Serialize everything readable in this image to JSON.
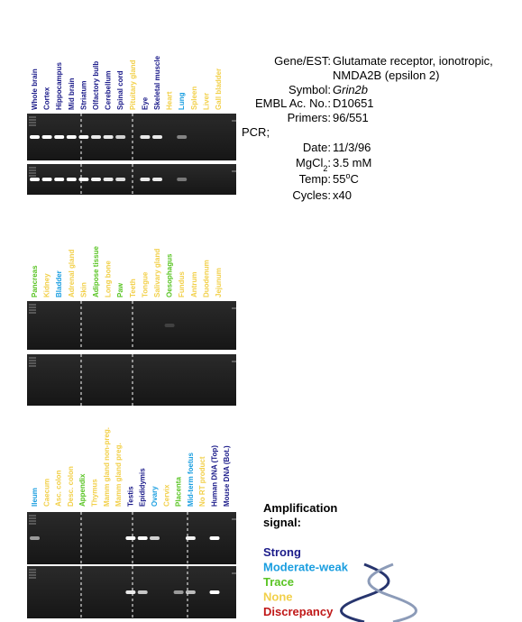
{
  "panels": [
    {
      "lanes": [
        {
          "label": "Whole brain",
          "color": "#1c1c8a"
        },
        {
          "label": "Cortex",
          "color": "#1c1c8a"
        },
        {
          "label": "Hippocampus",
          "color": "#1c1c8a"
        },
        {
          "label": "Mid brain",
          "color": "#1c1c8a"
        },
        {
          "label": "Striatum",
          "color": "#1c1c8a"
        },
        {
          "label": "Olfactory bulb",
          "color": "#1c1c8a"
        },
        {
          "label": "Cerebellum",
          "color": "#1c1c8a"
        },
        {
          "label": "Spinal cord",
          "color": "#1c1c8a"
        },
        {
          "label": "Pituitary gland",
          "color": "#f2d04a"
        },
        {
          "label": "Eye",
          "color": "#1c1c8a"
        },
        {
          "label": "Skeletal muscle",
          "color": "#1c1c8a"
        },
        {
          "label": "Heart",
          "color": "#f2d04a"
        },
        {
          "label": "Lung",
          "color": "#1a9ee0"
        },
        {
          "label": "Spleen",
          "color": "#f2d04a"
        },
        {
          "label": "Liver",
          "color": "#f2d04a"
        },
        {
          "label": "Gall bladder",
          "color": "#f2d04a"
        }
      ]
    },
    {
      "lanes": [
        {
          "label": "Pancreas",
          "color": "#5ac424"
        },
        {
          "label": "Kidney",
          "color": "#f2d04a"
        },
        {
          "label": "Bladder",
          "color": "#1a9ee0"
        },
        {
          "label": "Adrenal gland",
          "color": "#f2d04a"
        },
        {
          "label": "Skin",
          "color": "#f2d04a"
        },
        {
          "label": "Adipose tissue",
          "color": "#5ac424"
        },
        {
          "label": "Long bone",
          "color": "#f2d04a"
        },
        {
          "label": "Paw",
          "color": "#5ac424"
        },
        {
          "label": "Teeth",
          "color": "#f2d04a"
        },
        {
          "label": "Tongue",
          "color": "#f2d04a"
        },
        {
          "label": "Salivary gland",
          "color": "#f2d04a"
        },
        {
          "label": "Oesophagus",
          "color": "#5ac424"
        },
        {
          "label": "Fundus",
          "color": "#f2d04a"
        },
        {
          "label": "Antrum",
          "color": "#f2d04a"
        },
        {
          "label": "Duodenum",
          "color": "#f2d04a"
        },
        {
          "label": "Jejunum",
          "color": "#f2d04a"
        }
      ]
    },
    {
      "lanes": [
        {
          "label": "Ileum",
          "color": "#1a9ee0"
        },
        {
          "label": "Caecum",
          "color": "#f2d04a"
        },
        {
          "label": "Asc. colon",
          "color": "#f2d04a"
        },
        {
          "label": "Desc. colon",
          "color": "#f2d04a"
        },
        {
          "label": "Appendix",
          "color": "#5ac424"
        },
        {
          "label": "Thymus",
          "color": "#f2d04a"
        },
        {
          "label": "Mamm gland non-preg.",
          "color": "#f2d04a"
        },
        {
          "label": "Mamm gland preg.",
          "color": "#f2d04a"
        },
        {
          "label": "Testis",
          "color": "#1c1c8a"
        },
        {
          "label": "Epididymis",
          "color": "#1c1c8a"
        },
        {
          "label": "Ovary",
          "color": "#1a9ee0"
        },
        {
          "label": "Cervix",
          "color": "#f2d04a"
        },
        {
          "label": "Placenta",
          "color": "#5ac424"
        },
        {
          "label": "Mid-term foetus",
          "color": "#1a9ee0"
        },
        {
          "label": "No RT product",
          "color": "#f2d04a"
        },
        {
          "label": "Human DNA (Top)",
          "color": "#1c1c8a"
        },
        {
          "label": "Mouse DNA (Bot.)",
          "color": "#1c1c8a"
        }
      ]
    }
  ],
  "info": {
    "rows": [
      {
        "key": [
          {
            "text": "Gene/EST:"
          }
        ],
        "value": [
          {
            "text": "Glutamate receptor, ionotropic,"
          }
        ]
      },
      {
        "value": [
          {
            "text": "NMDA2B (epsilon 2)"
          }
        ]
      },
      {
        "key": [
          {
            "text": "Symbol:"
          }
        ],
        "value": [
          {
            "text": "Grin2b",
            "italic": true
          }
        ]
      },
      {
        "key": [
          {
            "text": "EMBL Ac. No.:"
          }
        ],
        "value": [
          {
            "text": "D10651"
          }
        ]
      },
      {
        "key": [
          {
            "text": "Primers:"
          }
        ],
        "value": [
          {
            "text": "96/551"
          }
        ]
      },
      {
        "heading": "PCR;"
      },
      {
        "key": [
          {
            "text": "Date:"
          }
        ],
        "value": [
          {
            "text": "11/3/96"
          }
        ]
      },
      {
        "key": [
          {
            "text": "MgCl"
          },
          {
            "text": "2",
            "sub": true
          },
          {
            "text": ":"
          }
        ],
        "value": [
          {
            "text": "3.5 mM"
          }
        ]
      },
      {
        "key": [
          {
            "text": "Temp:"
          }
        ],
        "value": [
          {
            "text": "55"
          },
          {
            "text": "o",
            "sup": true
          },
          {
            "text": "C"
          }
        ]
      },
      {
        "key": [
          {
            "text": "Cycles:"
          }
        ],
        "value": [
          {
            "text": "x40"
          }
        ]
      }
    ]
  },
  "legend": {
    "title": [
      "Amplification",
      "signal:"
    ],
    "items": [
      {
        "label": "Strong",
        "color": "#1c1c8a"
      },
      {
        "label": "Moderate-weak",
        "color": "#1a9ee0"
      },
      {
        "label": "Trace",
        "color": "#5ac424"
      },
      {
        "label": "None",
        "color": "#f2d04a"
      },
      {
        "label": "Discrepancy",
        "color": "#c01818"
      }
    ]
  }
}
